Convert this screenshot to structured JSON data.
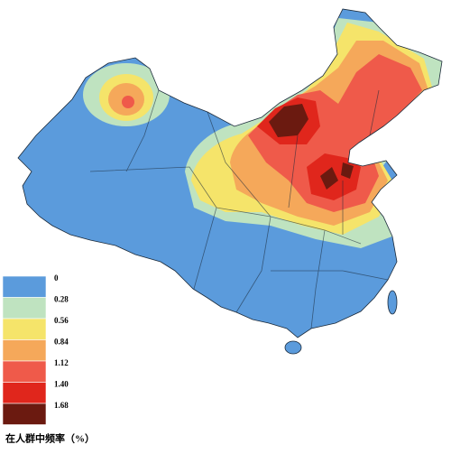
{
  "legend": {
    "title": "在人群中频率（%）",
    "items": [
      {
        "label": "0",
        "color": "#5b9bdc"
      },
      {
        "label": "0.28",
        "color": "#bfe3c0"
      },
      {
        "label": "0.56",
        "color": "#f5e46a"
      },
      {
        "label": "0.84",
        "color": "#f5a85a"
      },
      {
        "label": "1.12",
        "color": "#ef5a4a"
      },
      {
        "label": "1.40",
        "color": "#e0261c"
      },
      {
        "label": "1.68",
        "color": "#6b1a10"
      }
    ]
  }
}
